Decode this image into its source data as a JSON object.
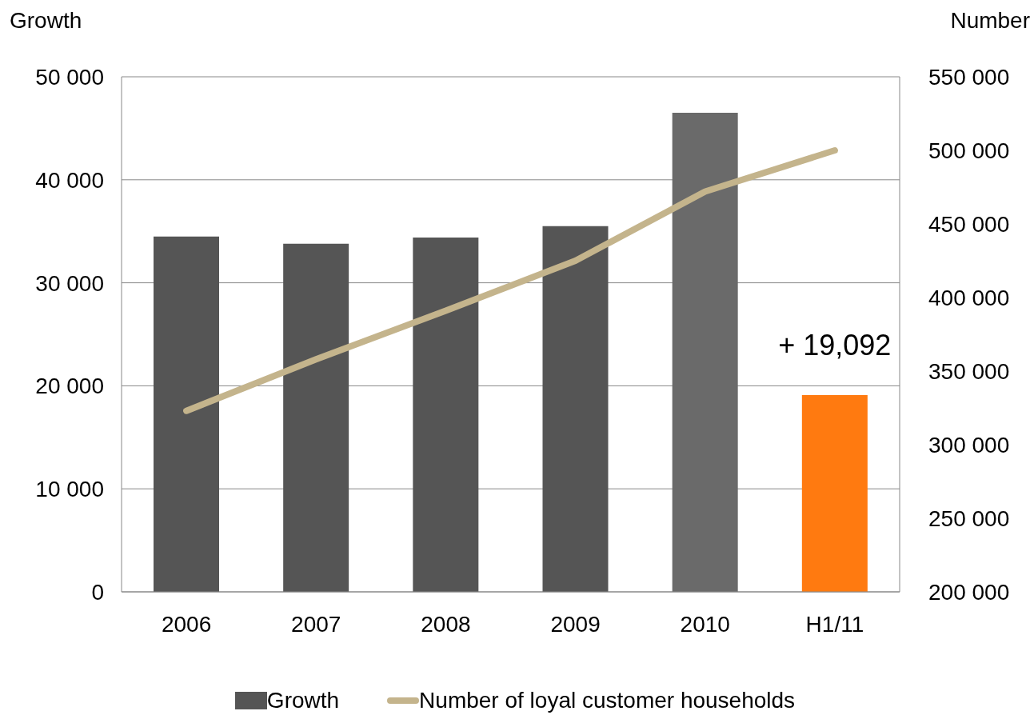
{
  "chart_data": {
    "type": "bar",
    "categories": [
      "2006",
      "2007",
      "2008",
      "2009",
      "2010",
      "H1/11"
    ],
    "ylabel": "Growth",
    "y2label": "Number",
    "ylim": [
      0,
      50000
    ],
    "yticks": [
      {
        "value": 0,
        "label": "0"
      },
      {
        "value": 10000,
        "label": "10 000"
      },
      {
        "value": 20000,
        "label": "20 000"
      },
      {
        "value": 30000,
        "label": "30 000"
      },
      {
        "value": 40000,
        "label": "40 000"
      },
      {
        "value": 50000,
        "label": "50 000"
      }
    ],
    "y2lim": [
      200000,
      550000
    ],
    "y2ticks": [
      {
        "value": 200000,
        "label": "200 000"
      },
      {
        "value": 250000,
        "label": "250 000"
      },
      {
        "value": 300000,
        "label": "300 000"
      },
      {
        "value": 350000,
        "label": "350 000"
      },
      {
        "value": 400000,
        "label": "400 000"
      },
      {
        "value": 450000,
        "label": "450 000"
      },
      {
        "value": 500000,
        "label": "500 000"
      },
      {
        "value": 550000,
        "label": "550 000"
      }
    ],
    "grid": "y",
    "legend": "bottom",
    "series": [
      {
        "name": "Growth",
        "color": "#555555",
        "colors": [
          "#555555",
          "#555555",
          "#555555",
          "#555555",
          "#6a6a6a",
          "#ff7a10"
        ],
        "values": [
          34500,
          33800,
          34400,
          35500,
          46500,
          19092
        ],
        "value_labels": [
          null,
          null,
          null,
          null,
          null,
          "+ 19,092"
        ]
      },
      {
        "name": "Number of loyal customer households",
        "type": "line",
        "axis": "y2",
        "color": "#c4b48c",
        "values": [
          323000,
          358000,
          391000,
          425000,
          472000,
          500000
        ]
      }
    ]
  }
}
